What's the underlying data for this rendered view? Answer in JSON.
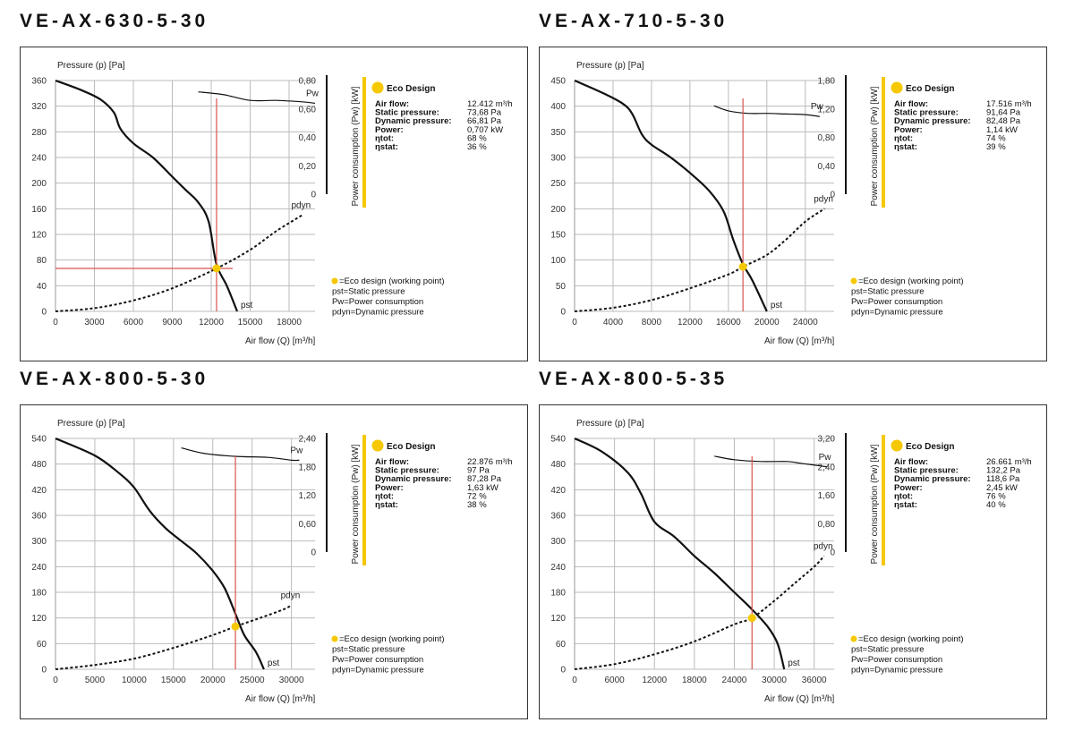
{
  "colors": {
    "accent_yellow": "#f5c800",
    "marker_line_red": "#d9534f",
    "curve": "#111111",
    "grid": "#bbbbbb"
  },
  "common": {
    "ylabel": "Pressure (p) [Pa]",
    "xlabel": "Air flow (Q) [m³/h]",
    "pw_axis_label": "Power consumption (Pw) [kW]",
    "eco_title": "Eco Design",
    "info_labels": [
      "Air flow:",
      "Static pressure:",
      "Dynamic pressure:",
      "Power:",
      "ηtot:",
      "ηstat:"
    ],
    "legend": [
      "=Eco design (working point)",
      "pst=Static pressure",
      "Pw=Power consumption",
      "pdyn=Dynamic pressure"
    ],
    "curve_labels": {
      "pw": "Pw",
      "pdyn": "pdyn",
      "pst": "pst"
    }
  },
  "chart_data": [
    {
      "type": "line",
      "title": "VE-AX-630-5-30",
      "xlim": [
        0,
        20000
      ],
      "xticks": [
        0,
        3000,
        6000,
        9000,
        12000,
        15000,
        18000
      ],
      "ylim": [
        0,
        360
      ],
      "yticks": [
        0,
        40,
        80,
        120,
        160,
        200,
        240,
        280,
        320,
        360
      ],
      "pw_ticks": [
        "0",
        "0,20",
        "0,40",
        "0,60",
        "0,80"
      ],
      "pw_max": 0.8,
      "pst": [
        [
          0,
          360
        ],
        [
          2000,
          345
        ],
        [
          3500,
          330
        ],
        [
          4500,
          310
        ],
        [
          5000,
          285
        ],
        [
          6000,
          262
        ],
        [
          7500,
          240
        ],
        [
          9000,
          210
        ],
        [
          10000,
          190
        ],
        [
          11000,
          170
        ],
        [
          11800,
          140
        ],
        [
          12400,
          74
        ],
        [
          13200,
          40
        ],
        [
          14000,
          0
        ]
      ],
      "pdyn": [
        [
          0,
          0
        ],
        [
          3000,
          5
        ],
        [
          6000,
          17
        ],
        [
          9000,
          36
        ],
        [
          12412,
          67
        ],
        [
          15000,
          96
        ],
        [
          17000,
          125
        ],
        [
          19000,
          150
        ]
      ],
      "pw": [
        [
          11000,
          0.72
        ],
        [
          13000,
          0.7
        ],
        [
          15000,
          0.66
        ],
        [
          17000,
          0.66
        ],
        [
          19000,
          0.65
        ],
        [
          20000,
          0.64
        ]
      ],
      "working_point": [
        12412,
        67
      ],
      "info_values": [
        "12.412 m³/h",
        "73,68 Pa",
        "66,81 Pa",
        "0,707 kW",
        "68 %",
        "36 %"
      ]
    },
    {
      "type": "line",
      "title": "VE-AX-710-5-30",
      "xlim": [
        0,
        27000
      ],
      "xticks": [
        0,
        4000,
        8000,
        12000,
        16000,
        20000,
        24000
      ],
      "ylim": [
        0,
        450
      ],
      "yticks": [
        0,
        50,
        100,
        150,
        200,
        250,
        300,
        350,
        400,
        450
      ],
      "pw_ticks": [
        "0",
        "0,40",
        "0,80",
        "1,20",
        "1,80"
      ],
      "pw_max": 1.8,
      "pst": [
        [
          0,
          450
        ],
        [
          3000,
          425
        ],
        [
          5000,
          405
        ],
        [
          6000,
          385
        ],
        [
          7000,
          345
        ],
        [
          8000,
          325
        ],
        [
          10000,
          300
        ],
        [
          12000,
          270
        ],
        [
          14000,
          235
        ],
        [
          15500,
          195
        ],
        [
          16500,
          140
        ],
        [
          17516,
          92
        ],
        [
          18500,
          60
        ],
        [
          20000,
          0
        ]
      ],
      "pdyn": [
        [
          0,
          0
        ],
        [
          4000,
          7
        ],
        [
          8000,
          22
        ],
        [
          12000,
          45
        ],
        [
          16000,
          72
        ],
        [
          17516,
          87
        ],
        [
          20000,
          110
        ],
        [
          22000,
          140
        ],
        [
          24000,
          175
        ],
        [
          26000,
          200
        ]
      ],
      "pw": [
        [
          14500,
          1.4
        ],
        [
          16000,
          1.32
        ],
        [
          18000,
          1.28
        ],
        [
          20000,
          1.28
        ],
        [
          22000,
          1.27
        ],
        [
          24000,
          1.26
        ],
        [
          25500,
          1.23
        ]
      ],
      "working_point": [
        17516,
        87
      ],
      "info_values": [
        "17.516 m³/h",
        "91,64 Pa",
        "82,48 Pa",
        "1,14 kW",
        "74 %",
        "39 %"
      ]
    },
    {
      "type": "line",
      "title": "VE-AX-800-5-30",
      "xlim": [
        0,
        33000
      ],
      "xticks": [
        0,
        5000,
        10000,
        15000,
        20000,
        25000,
        30000
      ],
      "ylim": [
        0,
        540
      ],
      "yticks": [
        0,
        60,
        120,
        180,
        240,
        300,
        360,
        420,
        480,
        540
      ],
      "pw_ticks": [
        "0",
        "0,60",
        "1,20",
        "1,80",
        "2,40"
      ],
      "pw_max": 2.4,
      "pst": [
        [
          0,
          540
        ],
        [
          5000,
          500
        ],
        [
          8000,
          460
        ],
        [
          10000,
          425
        ],
        [
          12000,
          370
        ],
        [
          14000,
          330
        ],
        [
          16000,
          300
        ],
        [
          18000,
          270
        ],
        [
          20000,
          230
        ],
        [
          21500,
          190
        ],
        [
          22876,
          130
        ],
        [
          24000,
          80
        ],
        [
          25500,
          40
        ],
        [
          26500,
          0
        ]
      ],
      "pdyn": [
        [
          0,
          0
        ],
        [
          5000,
          10
        ],
        [
          10000,
          25
        ],
        [
          15000,
          50
        ],
        [
          20000,
          80
        ],
        [
          22876,
          100
        ],
        [
          26000,
          120
        ],
        [
          29000,
          140
        ],
        [
          30000,
          150
        ]
      ],
      "pw": [
        [
          16000,
          2.2
        ],
        [
          19000,
          2.08
        ],
        [
          23000,
          2.02
        ],
        [
          27000,
          2.0
        ],
        [
          30000,
          1.94
        ],
        [
          31000,
          1.94
        ]
      ],
      "working_point": [
        22876,
        100
      ],
      "info_values": [
        "22.876 m³/h",
        "97 Pa",
        "87,28 Pa",
        "1,63 kW",
        "72 %",
        "38 %"
      ]
    },
    {
      "type": "line",
      "title": "VE-AX-800-5-35",
      "xlim": [
        0,
        39000
      ],
      "xticks": [
        0,
        6000,
        12000,
        18000,
        24000,
        30000,
        36000
      ],
      "ylim": [
        0,
        540
      ],
      "yticks": [
        0,
        60,
        120,
        180,
        240,
        300,
        360,
        420,
        480,
        540
      ],
      "pw_ticks": [
        "0",
        "0,80",
        "1,60",
        "2,40",
        "3,20"
      ],
      "pw_max": 3.2,
      "pst": [
        [
          0,
          540
        ],
        [
          4000,
          510
        ],
        [
          8000,
          460
        ],
        [
          10000,
          410
        ],
        [
          12000,
          345
        ],
        [
          15000,
          310
        ],
        [
          18000,
          265
        ],
        [
          21000,
          225
        ],
        [
          24000,
          180
        ],
        [
          26661,
          140
        ],
        [
          29000,
          100
        ],
        [
          30500,
          60
        ],
        [
          31500,
          0
        ]
      ],
      "pdyn": [
        [
          0,
          0
        ],
        [
          6000,
          12
        ],
        [
          12000,
          35
        ],
        [
          18000,
          65
        ],
        [
          24000,
          105
        ],
        [
          26661,
          120
        ],
        [
          30000,
          160
        ],
        [
          33000,
          200
        ],
        [
          36000,
          240
        ],
        [
          37500,
          265
        ]
      ],
      "pw": [
        [
          21000,
          2.7
        ],
        [
          24000,
          2.6
        ],
        [
          28000,
          2.55
        ],
        [
          32000,
          2.55
        ],
        [
          34000,
          2.5
        ],
        [
          38000,
          2.4
        ]
      ],
      "working_point": [
        26661,
        120
      ],
      "info_values": [
        "26.661 m³/h",
        "132,2 Pa",
        "118,6 Pa",
        "2,45 kW",
        "76 %",
        "40 %"
      ]
    }
  ]
}
